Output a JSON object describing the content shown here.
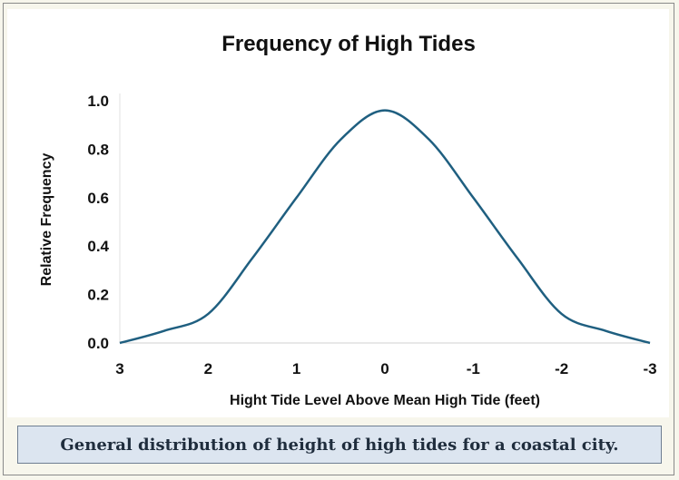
{
  "chart_data": {
    "type": "line",
    "title": "Frequency of High Tides",
    "xlabel": "Hight Tide Level Above Mean High Tide (feet)",
    "ylabel": "Relative Frequency",
    "x_ticks": [
      "3",
      "2",
      "1",
      "0",
      "-1",
      "-2",
      "-3"
    ],
    "y_ticks": [
      "0.0",
      "0.2",
      "0.4",
      "0.6",
      "0.8",
      "1.0"
    ],
    "xlim": [
      3,
      -3
    ],
    "ylim": [
      0,
      1
    ],
    "grid": false,
    "legend": "none",
    "series": [
      {
        "color": "#1f5f80",
        "x": [
          3,
          2.5,
          2,
          1.5,
          1,
          0.5,
          0,
          -0.5,
          -1,
          -1.5,
          -2,
          -2.5,
          -3
        ],
        "y": [
          0.0,
          0.05,
          0.12,
          0.35,
          0.6,
          0.84,
          0.96,
          0.84,
          0.6,
          0.35,
          0.12,
          0.05,
          0.0
        ]
      }
    ]
  },
  "caption": "General distribution of height of high tides for a coastal city."
}
